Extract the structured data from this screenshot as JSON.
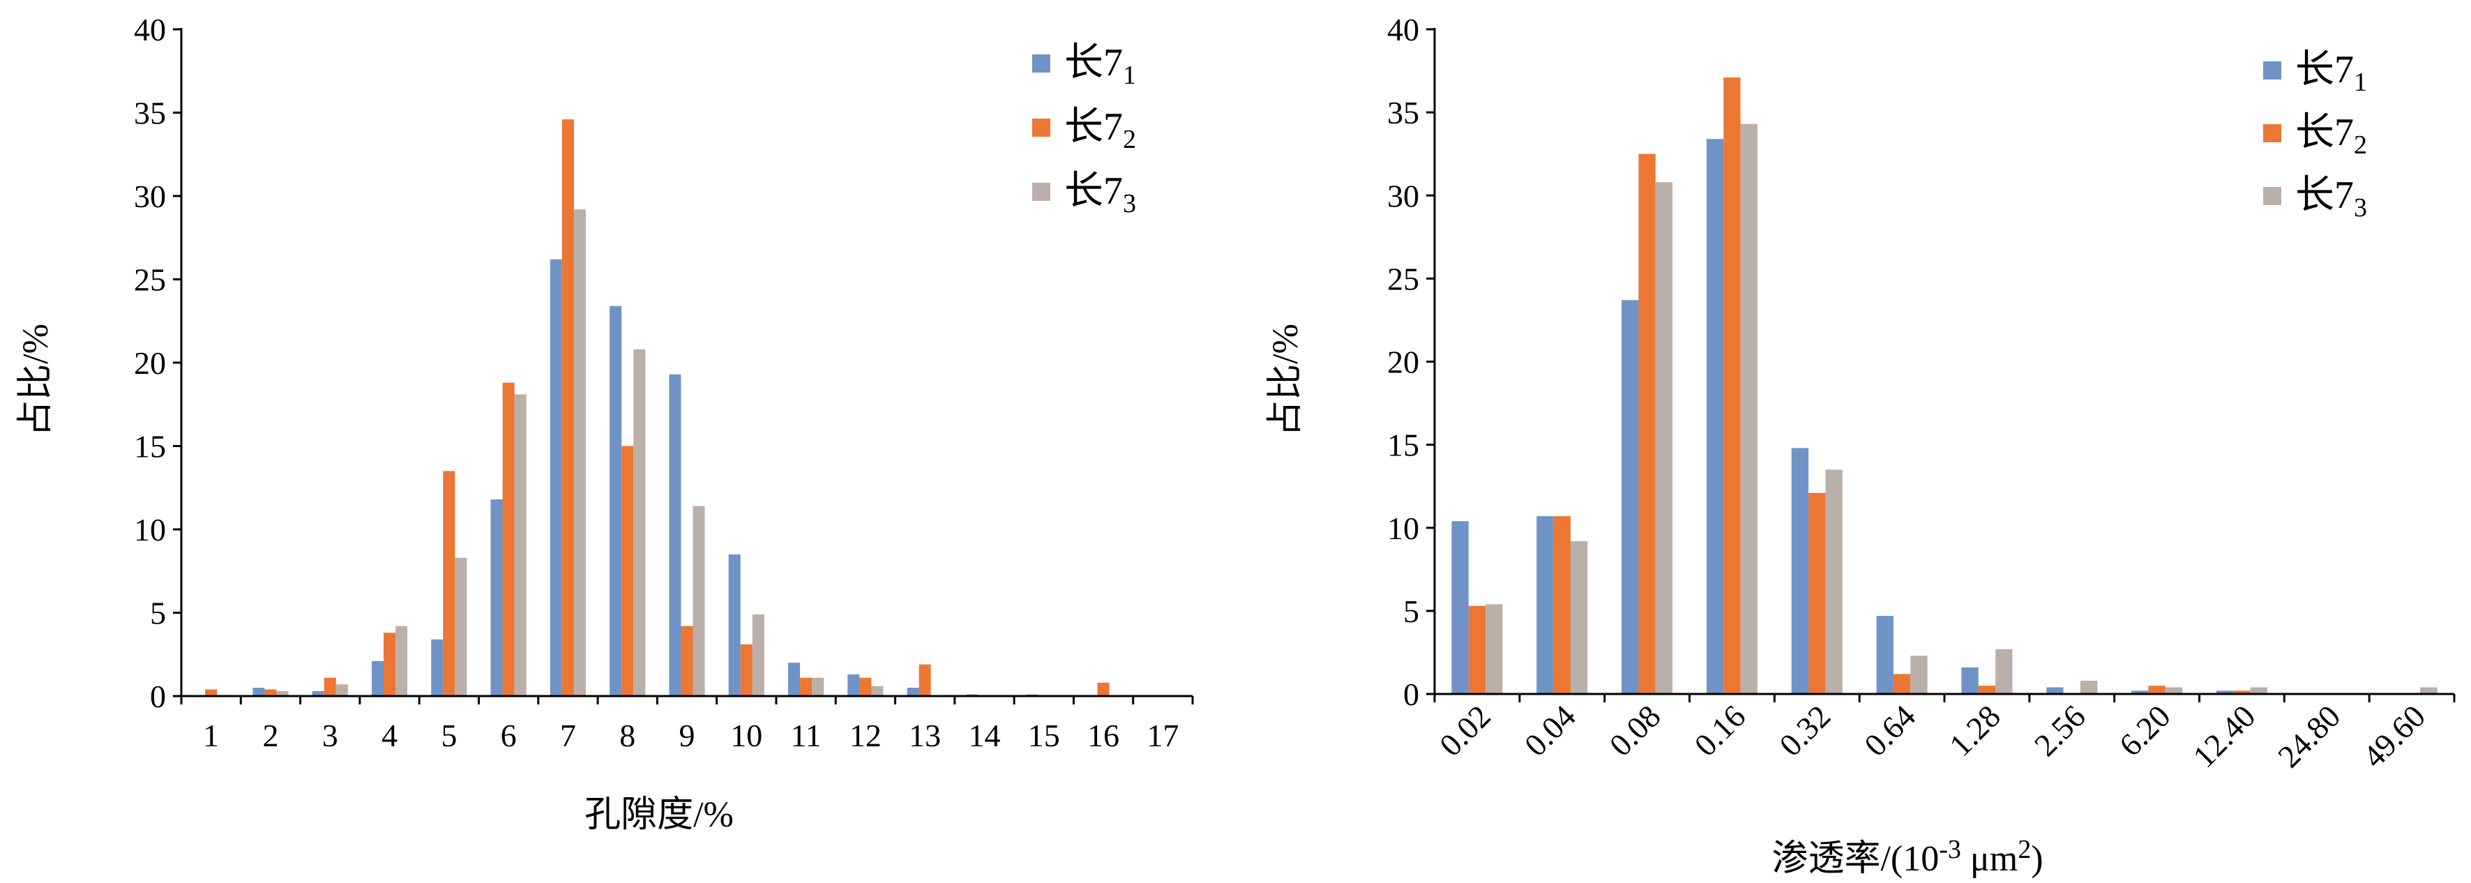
{
  "colors": {
    "series_1": "#6f93c6",
    "series_2": "#ec7733",
    "series_3": "#bbb0a9",
    "axis": "#000000"
  },
  "chart_data": [
    {
      "type": "bar",
      "xlabel": "孔隙度/%",
      "ylabel": "占比/%",
      "ylim": [
        0,
        40
      ],
      "yticks": [
        0,
        5,
        10,
        15,
        20,
        25,
        30,
        35,
        40
      ],
      "categories": [
        "1",
        "2",
        "3",
        "4",
        "5",
        "6",
        "7",
        "8",
        "9",
        "10",
        "11",
        "12",
        "13",
        "14",
        "15",
        "16",
        "17"
      ],
      "legend_position": "top-right",
      "series": [
        {
          "name": "长7",
          "name_sub": "1",
          "values": [
            0,
            0.5,
            0.3,
            2.1,
            3.4,
            11.8,
            26.2,
            23.4,
            19.3,
            8.5,
            2.0,
            1.3,
            0.5,
            0.1,
            0.1,
            0,
            0
          ]
        },
        {
          "name": "长7",
          "name_sub": "2",
          "values": [
            0.4,
            0.4,
            1.1,
            3.8,
            13.5,
            18.8,
            34.6,
            15.0,
            4.2,
            3.1,
            1.1,
            1.1,
            1.9,
            0,
            0,
            0.8,
            0
          ]
        },
        {
          "name": "长7",
          "name_sub": "3",
          "values": [
            0,
            0.3,
            0.7,
            4.2,
            8.3,
            18.1,
            29.2,
            20.8,
            11.4,
            4.9,
            1.1,
            0.6,
            0,
            0,
            0,
            0,
            0
          ]
        }
      ]
    },
    {
      "type": "bar",
      "xlabel": "渗透率/(10",
      "xlabel_sup1": "-3",
      "xlabel_mid": " μm",
      "xlabel_sup2": "2",
      "xlabel_end": ")",
      "ylabel": "占比/%",
      "ylim": [
        0,
        40
      ],
      "yticks": [
        0,
        5,
        10,
        15,
        20,
        25,
        30,
        35,
        40
      ],
      "categories": [
        "0.02",
        "0.04",
        "0.08",
        "0.16",
        "0.32",
        "0.64",
        "1.28",
        "2.56",
        "6.20",
        "12.40",
        "24.80",
        "49.60"
      ],
      "legend_position": "top-right",
      "series": [
        {
          "name": "长7",
          "name_sub": "1",
          "values": [
            10.4,
            10.7,
            23.7,
            33.4,
            14.8,
            4.7,
            1.6,
            0.4,
            0.2,
            0.2,
            0,
            0
          ]
        },
        {
          "name": "长7",
          "name_sub": "2",
          "values": [
            5.3,
            10.7,
            32.5,
            37.1,
            12.1,
            1.2,
            0.5,
            0,
            0.5,
            0.2,
            0,
            0
          ]
        },
        {
          "name": "长7",
          "name_sub": "3",
          "values": [
            5.4,
            9.2,
            30.8,
            34.3,
            13.5,
            2.3,
            2.7,
            0.8,
            0.4,
            0.4,
            0,
            0.4
          ]
        }
      ]
    }
  ]
}
